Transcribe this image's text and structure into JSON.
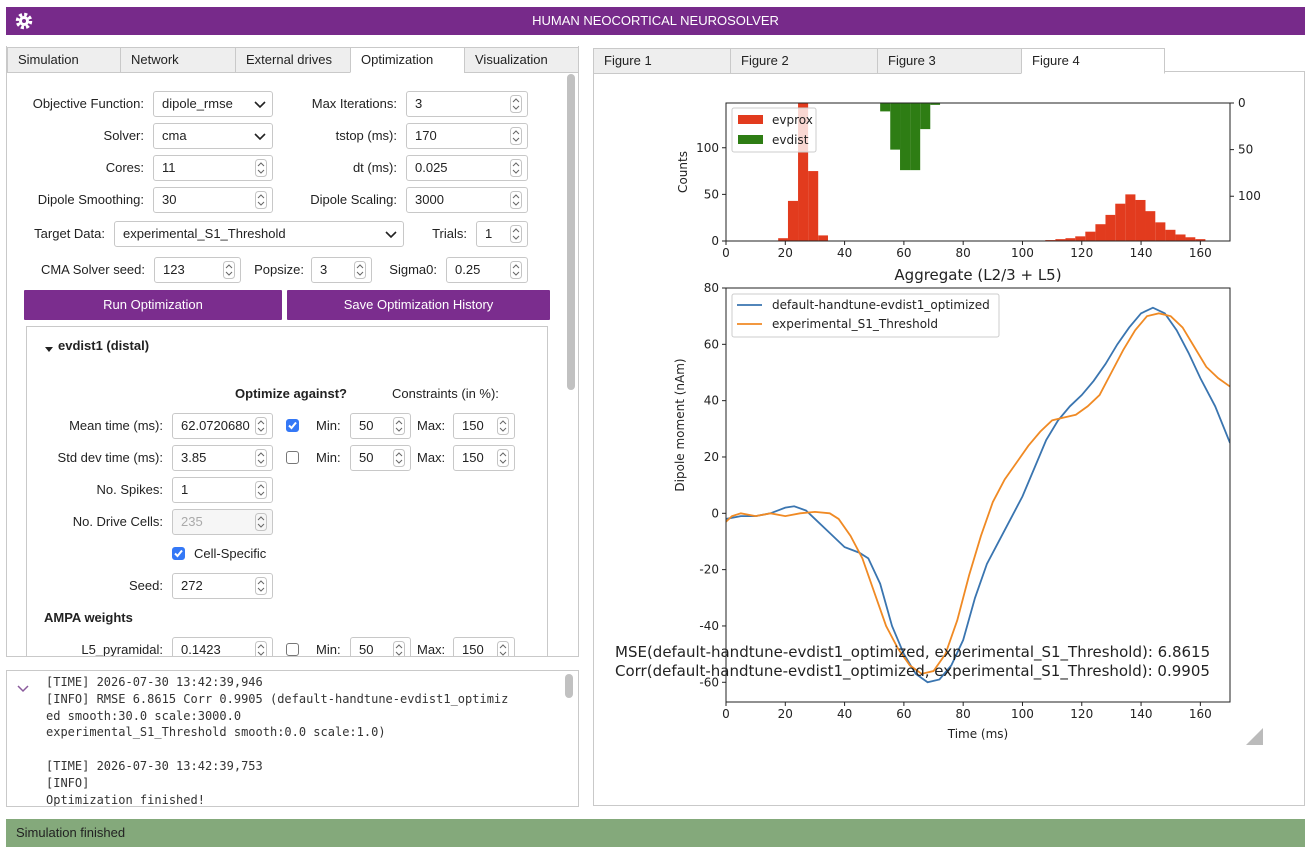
{
  "header": {
    "title": "HUMAN NEOCORTICAL NEUROSOLVER"
  },
  "left_tabs": [
    "Simulation",
    "Network",
    "External drives",
    "Optimization",
    "Visualization"
  ],
  "optimization": {
    "objective_function": {
      "label": "Objective Function:",
      "value": "dipole_rmse"
    },
    "max_iterations": {
      "label": "Max Iterations:",
      "value": 3
    },
    "solver": {
      "label": "Solver:",
      "value": "cma"
    },
    "tstop": {
      "label": "tstop (ms):",
      "value": 170
    },
    "cores": {
      "label": "Cores:",
      "value": 11
    },
    "dt": {
      "label": "dt (ms):",
      "value": 0.025
    },
    "dipole_smoothing": {
      "label": "Dipole Smoothing:",
      "value": 30
    },
    "dipole_scaling": {
      "label": "Dipole Scaling:",
      "value": 3000
    },
    "target_data": {
      "label": "Target Data:",
      "value": "experimental_S1_Threshold"
    },
    "trials": {
      "label": "Trials:",
      "value": 1
    },
    "cma_seed": {
      "label": "CMA Solver seed:",
      "value": 123
    },
    "popsize": {
      "label": "Popsize:",
      "value": 3
    },
    "sigma0": {
      "label": "Sigma0:",
      "value": 0.25
    },
    "buttons": [
      "Run Optimization",
      "Save Optimization History"
    ]
  },
  "drive": {
    "title": "evdist1 (distal)",
    "optimize_header": "Optimize against?",
    "constraints_header": "Constraints (in %):",
    "min_label": "Min:",
    "max_label": "Max:",
    "params": [
      {
        "label": "Mean time (ms):",
        "value": "62.0720680",
        "optimize": true,
        "min": 50,
        "max": 150
      },
      {
        "label": "Std dev time (ms):",
        "value": 3.85,
        "optimize": false,
        "min": 50,
        "max": 150
      },
      {
        "label": "No. Spikes:",
        "value": 1
      },
      {
        "label": "No. Drive Cells:",
        "value": 235,
        "disabled": true
      }
    ],
    "cell_specific": {
      "label": "Cell-Specific",
      "checked": true
    },
    "seed": {
      "label": "Seed:",
      "value": 272
    },
    "ampa_title": "AMPA weights",
    "ampa": [
      {
        "label": "L5_pyramidal:",
        "value": 0.1423,
        "optimize": false,
        "min": 50,
        "max": 150
      }
    ]
  },
  "log": {
    "lines": [
      "[TIME] 2026-07-30 13:42:39,946",
      "[INFO] RMSE 6.8615 Corr 0.9905 (default-handtune-evdist1_optimiz",
      "ed smooth:30.0 scale:3000.0",
      "experimental_S1_Threshold smooth:0.0 scale:1.0)",
      "[TIME] 2026-07-30 13:42:39,753",
      "[INFO]",
      "Optimization finished!"
    ]
  },
  "status": "Simulation finished",
  "figure_tabs": [
    "Figure 1",
    "Figure 2",
    "Figure 3",
    "Figure 4"
  ],
  "histogram": {
    "type": "histogram",
    "ylabel": "Counts",
    "xlim": [
      0,
      170
    ],
    "xticks": [
      0,
      20,
      40,
      60,
      80,
      100,
      120,
      140,
      160
    ],
    "ylim": [
      0,
      148
    ],
    "yticks": [
      0,
      50,
      100
    ],
    "y2lim": [
      0,
      148
    ],
    "y2ticks": [
      0,
      50,
      100
    ],
    "y2_inverted": true,
    "series": [
      {
        "name": "evprox",
        "color": "#e23b1e",
        "bins": [
          17.6,
          20.9,
          24.3,
          27.7,
          31.1,
          34.4,
          107.7,
          111.1,
          114.5,
          117.8,
          121.2,
          124.6,
          128.0,
          131.3,
          134.7,
          138.1,
          141.5,
          144.8,
          148.2,
          151.6,
          155.0,
          158.3,
          161.7
        ],
        "counts": [
          3,
          43,
          150,
          75,
          6,
          0,
          1,
          2,
          3,
          5,
          10,
          18,
          28,
          40,
          50,
          44,
          32,
          20,
          12,
          7,
          4,
          2
        ]
      },
      {
        "name": "evdist",
        "color": "#2e7d14",
        "axis": "y2",
        "bins": [
          52.0,
          55.4,
          58.7,
          62.1,
          65.5,
          68.9,
          72.2
        ],
        "counts": [
          9,
          50,
          72,
          72,
          28,
          2
        ]
      }
    ]
  },
  "dipole": {
    "type": "line",
    "title": "Aggregate (L2/3 + L5)",
    "xlabel": "Time (ms)",
    "ylabel": "Dipole moment (nAm)",
    "xlim": [
      0,
      170
    ],
    "xticks": [
      0,
      20,
      40,
      60,
      80,
      100,
      120,
      140,
      160
    ],
    "ylim": [
      -67,
      80
    ],
    "yticks": [
      -60,
      -40,
      -20,
      0,
      20,
      40,
      60,
      80
    ],
    "annotations": [
      "MSE(default-handtune-evdist1_optimized, experimental_S1_Threshold): 6.8615",
      "Corr(default-handtune-evdist1_optimized, experimental_S1_Threshold): 0.9905"
    ],
    "series": [
      {
        "name": "default-handtune-evdist1_optimized",
        "color": "#3a75b0",
        "x": [
          0,
          5,
          10,
          15,
          20,
          23,
          27,
          30,
          35,
          40,
          45,
          48,
          52,
          56,
          60,
          64,
          68,
          72,
          76,
          80,
          84,
          88,
          92,
          96,
          100,
          104,
          108,
          112,
          116,
          120,
          124,
          128,
          132,
          136,
          140,
          144,
          148,
          152,
          156,
          160,
          165,
          170
        ],
        "values": [
          -2,
          -1,
          -1,
          0,
          2,
          2.5,
          1,
          -2,
          -7,
          -12,
          -14,
          -16,
          -25,
          -40,
          -50,
          -57,
          -60,
          -59,
          -54,
          -45,
          -30,
          -18,
          -10,
          -2,
          6,
          16,
          26,
          33,
          38,
          42,
          47,
          53,
          60,
          66,
          71,
          73,
          71,
          65,
          57,
          48,
          38,
          25
        ]
      },
      {
        "name": "experimental_S1_Threshold",
        "color": "#f08a24",
        "x": [
          0,
          2,
          5,
          10,
          15,
          20,
          25,
          30,
          35,
          38,
          42,
          46,
          50,
          54,
          58,
          62,
          66,
          70,
          74,
          78,
          82,
          86,
          90,
          94,
          98,
          102,
          106,
          110,
          114,
          118,
          122,
          126,
          130,
          134,
          138,
          142,
          146,
          150,
          154,
          158,
          162,
          166,
          170
        ],
        "values": [
          -3,
          -1,
          0,
          -1,
          0,
          -1,
          0,
          0.5,
          0,
          -2,
          -8,
          -16,
          -28,
          -40,
          -48,
          -54,
          -57,
          -56,
          -50,
          -38,
          -22,
          -8,
          4,
          12,
          18,
          24,
          29,
          33,
          34,
          35,
          38,
          42,
          50,
          58,
          65,
          70,
          71,
          70,
          66,
          59,
          52,
          48,
          45
        ]
      }
    ]
  }
}
